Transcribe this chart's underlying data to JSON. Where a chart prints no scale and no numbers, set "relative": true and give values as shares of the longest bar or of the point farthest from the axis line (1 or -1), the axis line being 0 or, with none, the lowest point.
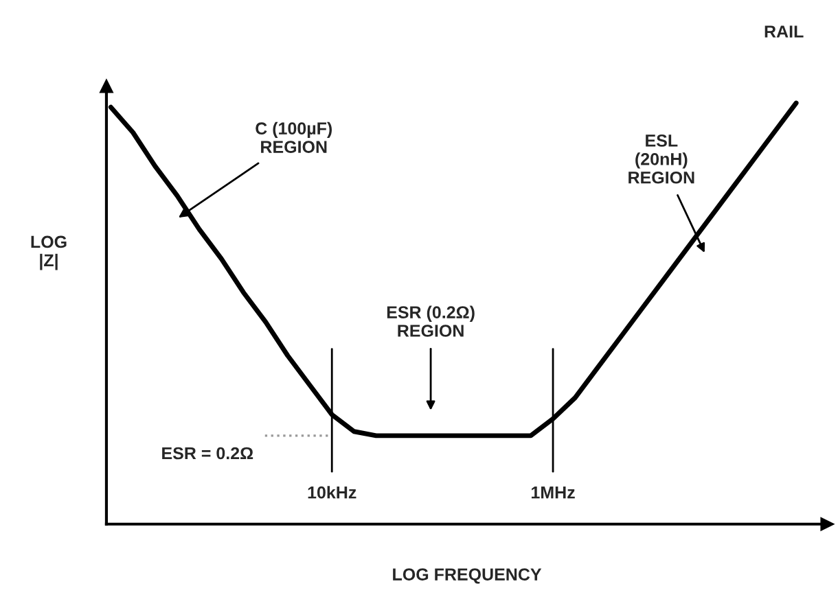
{
  "chart_data": {
    "type": "line",
    "relative": true,
    "xlabel": "LOG FREQUENCY",
    "ylabel": "LOG\n|Z|",
    "categories": [
      null,
      null,
      null,
      null,
      null,
      null,
      null,
      null,
      null,
      null,
      "10kHz",
      null,
      null,
      null,
      null,
      null,
      null,
      null,
      null,
      null,
      "1MHz",
      null,
      null,
      null,
      null,
      null,
      null,
      null,
      null,
      null,
      null,
      null
    ],
    "series": [
      {
        "color": "#000000",
        "values": [
          0.99,
          0.93,
          0.85,
          0.78,
          0.7,
          0.63,
          0.55,
          0.48,
          0.4,
          0.33,
          0.26,
          0.22,
          0.21,
          0.21,
          0.21,
          0.21,
          0.21,
          0.21,
          0.21,
          0.21,
          0.25,
          0.3,
          0.37,
          0.44,
          0.51,
          0.58,
          0.65,
          0.72,
          0.79,
          0.86,
          0.93,
          1.0
        ]
      }
    ],
    "ref_lines": [
      {
        "axis": "y",
        "value": 0.21,
        "label": "ESR = 0.2Ω",
        "color": "#999999",
        "line_style": "dotted"
      }
    ],
    "annotations": [
      "C (100µF)\nREGION",
      "ESL\n(20nH)\nREGION",
      "ESR (0.2Ω)\nREGION",
      "RAIL"
    ],
    "legend": false,
    "marker": "none",
    "line_style": "solid"
  }
}
